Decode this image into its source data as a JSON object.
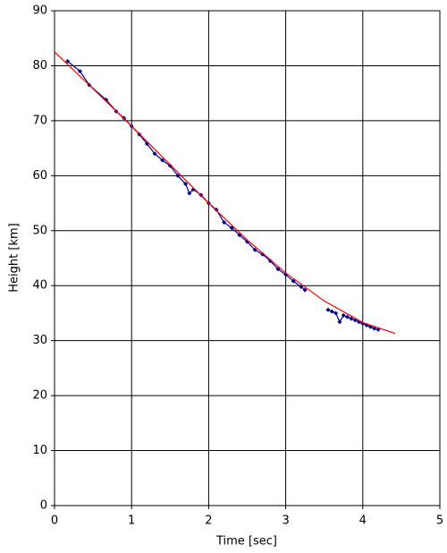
{
  "chart_data": {
    "type": "scatter",
    "xlabel": "Time [sec]",
    "ylabel": "Height [km]",
    "xlim": [
      0,
      5
    ],
    "ylim": [
      0,
      90
    ],
    "xticks": [
      0,
      1,
      2,
      3,
      4,
      5
    ],
    "yticks": [
      0,
      10,
      20,
      30,
      40,
      50,
      60,
      70,
      80,
      90
    ],
    "grid": true,
    "series": [
      {
        "mode": "markers+line",
        "color": "#00008b",
        "x": [
          0.17,
          0.33,
          0.45,
          0.67,
          0.8,
          0.9,
          1.0,
          1.1,
          1.2,
          1.3,
          1.4,
          1.5,
          1.6,
          1.7,
          1.75,
          1.8,
          1.9,
          2.0,
          2.1,
          2.2,
          2.3,
          2.4,
          2.5,
          2.6,
          2.7,
          2.8,
          2.9,
          3.0,
          3.1,
          3.2,
          3.25,
          3.4,
          3.55,
          3.6,
          3.65,
          3.7,
          3.75,
          3.8,
          3.85,
          3.9,
          3.95,
          4.0,
          4.05,
          4.1,
          4.15,
          4.2
        ],
        "values": [
          80.8,
          79,
          76.5,
          73.8,
          71.7,
          70.5,
          69,
          67.5,
          65.8,
          64,
          62.8,
          61.8,
          60,
          58.5,
          56.8,
          57.5,
          56.5,
          55,
          53.8,
          51.5,
          50.5,
          49.2,
          48,
          46.5,
          45.7,
          44.5,
          43,
          42,
          40.8,
          39.8,
          39.2,
          null,
          35.6,
          35.3,
          35,
          33.4,
          34.6,
          34.3,
          34,
          33.7,
          33.4,
          33.1,
          32.8,
          32.5,
          32.2,
          32
        ]
      },
      {
        "mode": "line",
        "color": "#ff0000",
        "x": [
          0,
          0.5,
          1,
          1.5,
          2,
          2.5,
          3,
          3.5,
          4,
          4.42
        ],
        "values": [
          82.5,
          75.8,
          69,
          62,
          55,
          48.3,
          42.3,
          37.2,
          33.3,
          31.3
        ]
      }
    ]
  }
}
